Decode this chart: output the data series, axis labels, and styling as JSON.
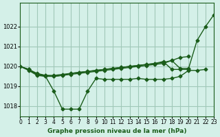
{
  "title": "Graphe pression niveau de la mer (hPa)",
  "bg_color": "#d4f0e8",
  "grid_color": "#a0c8b8",
  "line_color": "#1a5c1a",
  "xlim": [
    0,
    23
  ],
  "ylim": [
    1017.5,
    1023.2
  ],
  "yticks": [
    1018,
    1019,
    1020,
    1021,
    1022
  ],
  "xtick_labels": [
    "0",
    "1",
    "2",
    "3",
    "4",
    "5",
    "6",
    "7",
    "8",
    "9",
    "10",
    "11",
    "12",
    "13",
    "14",
    "15",
    "16",
    "17",
    "18",
    "19",
    "20",
    "21",
    "22",
    "23"
  ],
  "series": [
    [
      1020.0,
      1019.85,
      1019.6,
      1019.55,
      1019.55,
      1019.6,
      1019.65,
      1019.7,
      1019.75,
      1019.8,
      1019.85,
      1019.9,
      1019.95,
      1020.0,
      1020.05,
      1020.1,
      1020.15,
      1020.2,
      1020.3,
      1019.9,
      1019.9,
      1021.3,
      1022.0,
      1022.6
    ],
    [
      1020.0,
      1019.8,
      1019.55,
      1019.5,
      1018.75,
      1017.85,
      1017.85,
      1017.85,
      1018.75,
      1019.4,
      1019.35,
      1019.35,
      1019.35,
      1019.35,
      1019.4,
      1019.35,
      1019.35,
      1019.35,
      1019.4,
      1019.5,
      1019.8,
      1019.8,
      1019.85,
      null
    ],
    [
      1020.0,
      1019.85,
      1019.6,
      1019.5,
      1019.5,
      1019.55,
      1019.6,
      1019.65,
      1019.7,
      1019.75,
      1019.8,
      1019.85,
      1019.9,
      1019.95,
      1020.0,
      1020.05,
      1020.1,
      1020.15,
      1020.3,
      1020.45,
      1020.5,
      null,
      null,
      null
    ],
    [
      1020.0,
      1019.85,
      1019.65,
      1019.55,
      1019.5,
      1019.55,
      1019.65,
      1019.7,
      1019.75,
      1019.8,
      1019.85,
      1019.9,
      1019.95,
      1020.0,
      1020.05,
      1020.1,
      1020.15,
      1020.25,
      1019.85,
      1019.85,
      1019.85,
      null,
      null,
      null
    ]
  ]
}
